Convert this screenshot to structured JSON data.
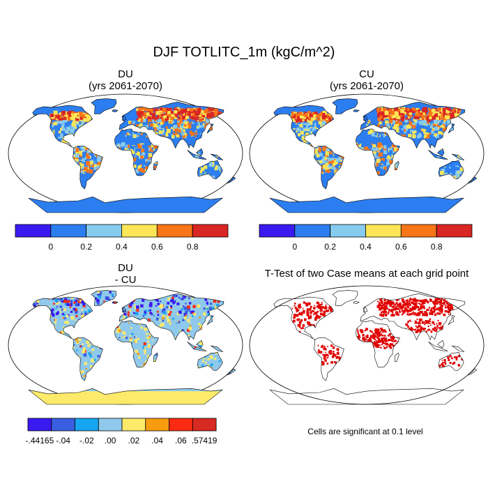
{
  "chart_data": {
    "type": "heatmap",
    "title": "DJF TOTLITC_1m (kgC/m^2)",
    "panels": [
      {
        "id": "du",
        "title": "DU",
        "subtitle": "(yrs 2061-2070)",
        "colorbar": {
          "colors": [
            "#3a1af0",
            "#2c7ef0",
            "#87cbef",
            "#fce657",
            "#f97517",
            "#d92523"
          ],
          "tick_labels": [
            "0",
            "0.2",
            "0.4",
            "0.6",
            "0.8"
          ],
          "levels": [
            0,
            0.2,
            0.4,
            0.6,
            0.8
          ]
        }
      },
      {
        "id": "cu",
        "title": "CU",
        "subtitle": "(yrs 2061-2070)",
        "colorbar": {
          "colors": [
            "#3a1af0",
            "#2c7ef0",
            "#87cbef",
            "#fce657",
            "#f97517",
            "#d92523"
          ],
          "tick_labels": [
            "0",
            "0.2",
            "0.4",
            "0.6",
            "0.8"
          ],
          "levels": [
            0,
            0.2,
            0.4,
            0.6,
            0.8
          ]
        }
      },
      {
        "id": "diff",
        "title": "DU",
        "subtitle": "- CU",
        "colorbar": {
          "colors": [
            "#3a1af0",
            "#3a5ee0",
            "#16a5f0",
            "#8fc9ec",
            "#fdea6a",
            "#f69c0e",
            "#fb2a12",
            "#d62a23"
          ],
          "tick_labels": [
            "-.44165",
            "-.04",
            "-.02",
            ".00",
            ".02",
            ".04",
            ".06",
            ".57419"
          ],
          "levels": [
            -0.44165,
            -0.04,
            -0.02,
            0.0,
            0.02,
            0.04,
            0.06,
            0.57419
          ]
        }
      },
      {
        "id": "ttest",
        "title": "T-Test of two Case means at each grid point",
        "note": "Cells are significant at 0.1 level",
        "significance_level": 0.1
      }
    ]
  }
}
